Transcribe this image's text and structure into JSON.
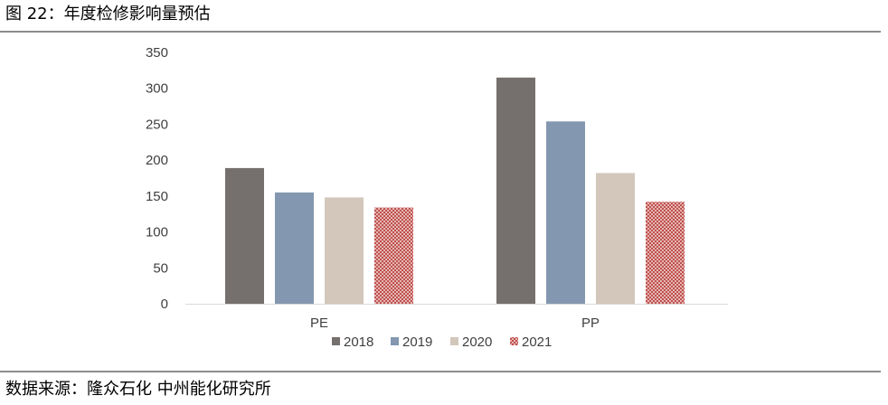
{
  "header": {
    "figure_title": "图 22：年度检修影响量预估"
  },
  "footer": {
    "source": "数据来源：隆众石化 中州能化研究所"
  },
  "colors": {
    "rule": "#8c8c8c",
    "axis": "#d9d9d9",
    "text": "#404040",
    "series": [
      "#756f6e",
      "#8497b0",
      "#d3c7bb",
      "#c0504d"
    ]
  },
  "chart_data": {
    "type": "bar",
    "title": "",
    "xlabel": "",
    "ylabel": "",
    "categories": [
      "PE",
      "PP"
    ],
    "series": [
      {
        "name": "2018",
        "values": [
          189,
          315
        ]
      },
      {
        "name": "2019",
        "values": [
          155,
          254
        ]
      },
      {
        "name": "2020",
        "values": [
          148,
          182
        ]
      },
      {
        "name": "2021",
        "values": [
          134,
          142
        ]
      }
    ],
    "ylim": [
      0,
      350
    ],
    "yticks": [
      0,
      50,
      100,
      150,
      200,
      250,
      300,
      350
    ],
    "grid": false,
    "legend_position": "bottom",
    "fill_patterns": [
      "solid",
      "solid",
      "solid",
      "dotted"
    ]
  }
}
